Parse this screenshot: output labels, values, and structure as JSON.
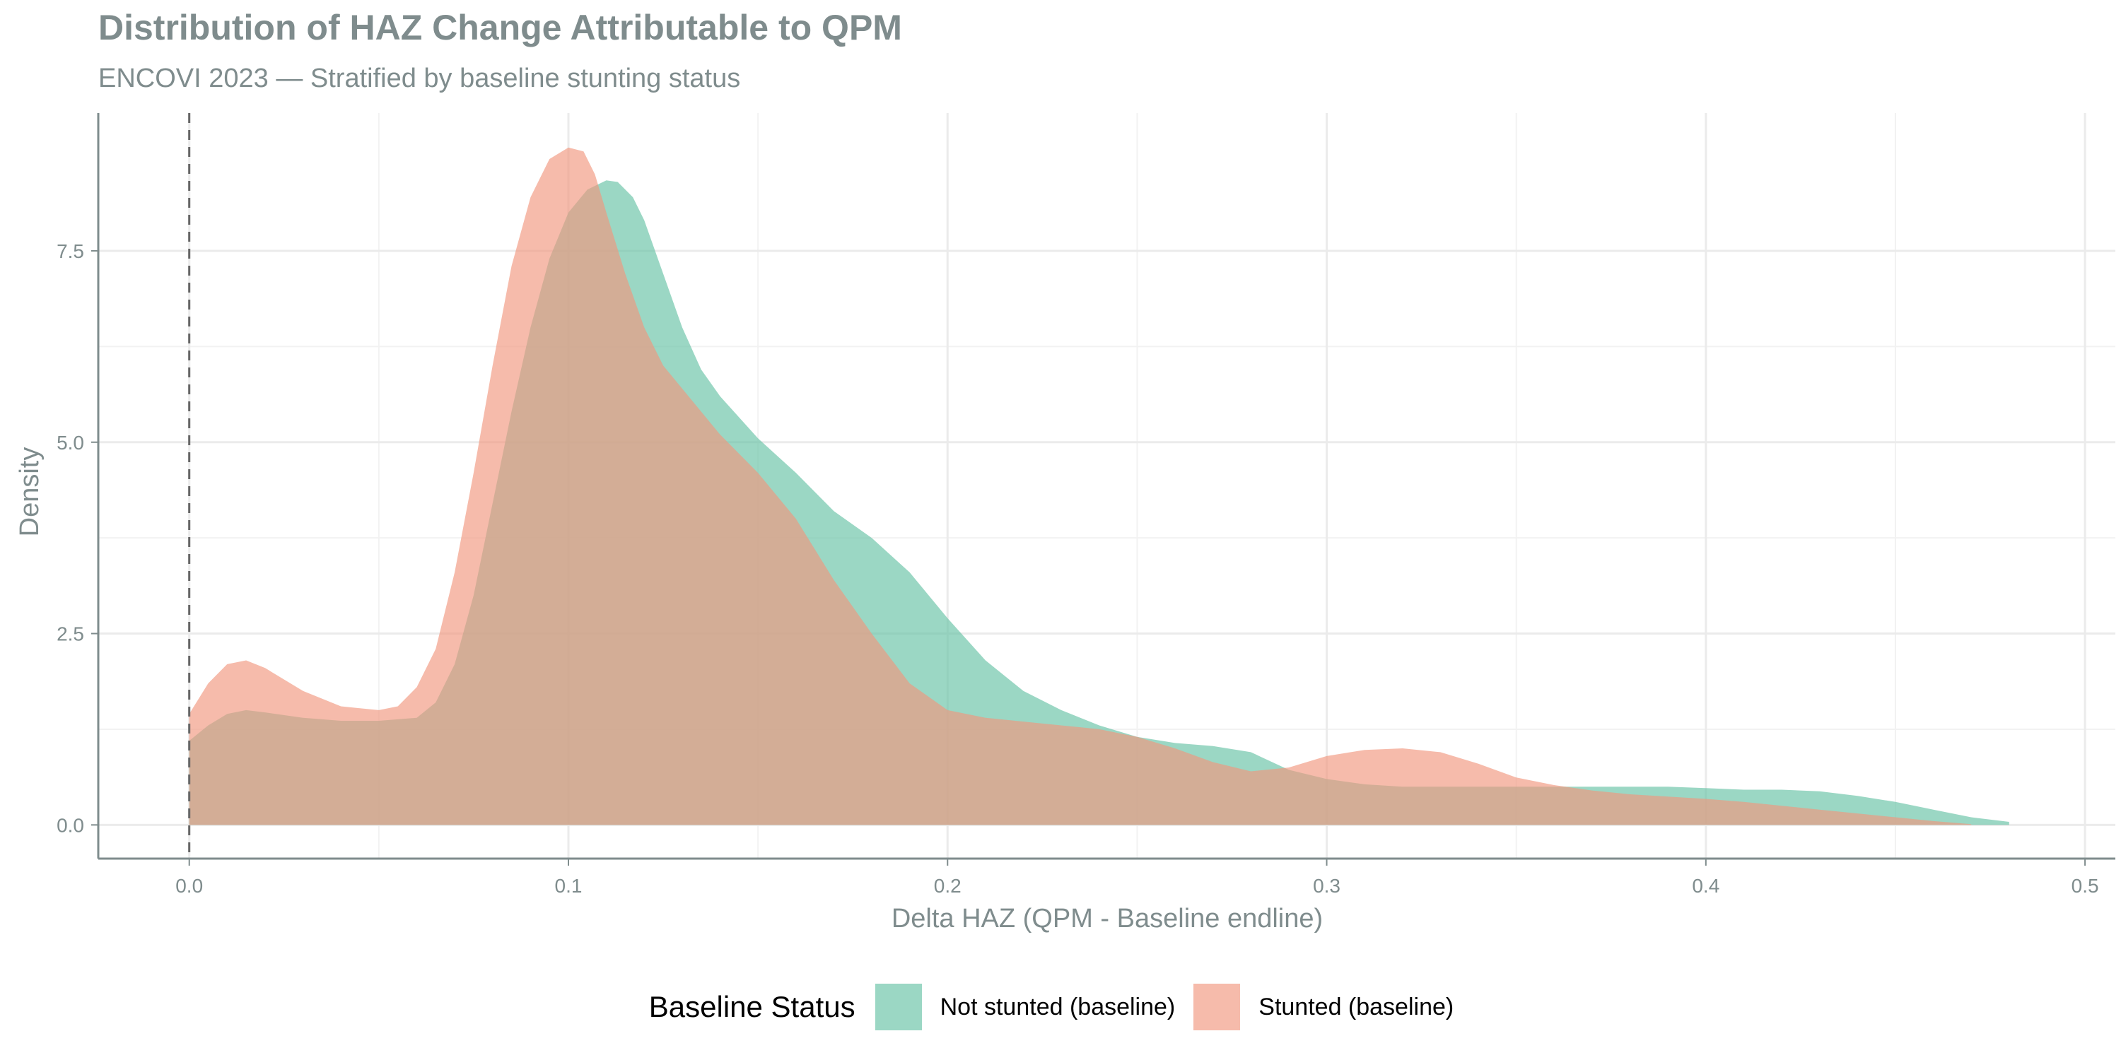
{
  "chart_data": {
    "type": "area",
    "title": "Distribution of HAZ Change Attributable to QPM",
    "subtitle": "ENCOVI 2023 — Stratified by baseline stunting status",
    "xlabel": "Delta HAZ (QPM - Baseline endline)",
    "ylabel": "Density",
    "xlim": [
      -0.024,
      0.508
    ],
    "ylim": [
      -0.44,
      9.3
    ],
    "x_ticks": [
      0.0,
      0.1,
      0.2,
      0.3,
      0.4,
      0.5
    ],
    "x_tick_labels": [
      "0.0",
      "0.1",
      "0.2",
      "0.3",
      "0.4",
      "0.5"
    ],
    "y_ticks": [
      0.0,
      2.5,
      5.0,
      7.5
    ],
    "y_tick_labels": [
      "0.0",
      "2.5",
      "5.0",
      "7.5"
    ],
    "grid": true,
    "reference_line": {
      "x": 0.0,
      "style": "dashed"
    },
    "legend": {
      "title": "Baseline Status",
      "position": "bottom"
    },
    "series": [
      {
        "name": "Not stunted (baseline)",
        "color": "#66c2a5",
        "x": [
          0.0,
          0.005,
          0.01,
          0.015,
          0.02,
          0.03,
          0.04,
          0.05,
          0.06,
          0.065,
          0.07,
          0.075,
          0.08,
          0.085,
          0.09,
          0.095,
          0.1,
          0.105,
          0.11,
          0.113,
          0.117,
          0.12,
          0.125,
          0.13,
          0.135,
          0.14,
          0.15,
          0.16,
          0.17,
          0.18,
          0.19,
          0.2,
          0.21,
          0.22,
          0.23,
          0.24,
          0.25,
          0.26,
          0.27,
          0.28,
          0.29,
          0.3,
          0.31,
          0.32,
          0.33,
          0.34,
          0.35,
          0.36,
          0.37,
          0.38,
          0.39,
          0.4,
          0.41,
          0.42,
          0.43,
          0.44,
          0.45,
          0.46,
          0.47,
          0.48
        ],
        "y": [
          1.1,
          1.3,
          1.45,
          1.5,
          1.47,
          1.4,
          1.36,
          1.36,
          1.4,
          1.6,
          2.1,
          3.0,
          4.2,
          5.4,
          6.5,
          7.4,
          8.0,
          8.3,
          8.42,
          8.4,
          8.2,
          7.9,
          7.2,
          6.5,
          5.95,
          5.6,
          5.05,
          4.6,
          4.1,
          3.75,
          3.3,
          2.7,
          2.15,
          1.75,
          1.5,
          1.3,
          1.15,
          1.07,
          1.03,
          0.95,
          0.72,
          0.6,
          0.53,
          0.5,
          0.5,
          0.5,
          0.5,
          0.5,
          0.5,
          0.5,
          0.5,
          0.48,
          0.46,
          0.46,
          0.44,
          0.38,
          0.3,
          0.2,
          0.1,
          0.04
        ]
      },
      {
        "name": "Stunted (baseline)",
        "color": "#f1967e",
        "x": [
          0.0,
          0.005,
          0.01,
          0.015,
          0.02,
          0.03,
          0.04,
          0.05,
          0.055,
          0.06,
          0.065,
          0.07,
          0.075,
          0.08,
          0.085,
          0.09,
          0.095,
          0.1,
          0.104,
          0.107,
          0.11,
          0.115,
          0.12,
          0.125,
          0.13,
          0.14,
          0.15,
          0.16,
          0.17,
          0.18,
          0.19,
          0.2,
          0.21,
          0.22,
          0.23,
          0.24,
          0.25,
          0.26,
          0.27,
          0.28,
          0.29,
          0.3,
          0.31,
          0.32,
          0.33,
          0.34,
          0.35,
          0.36,
          0.37,
          0.38,
          0.39,
          0.4,
          0.41,
          0.42,
          0.43,
          0.44,
          0.45,
          0.46,
          0.47
        ],
        "y": [
          1.45,
          1.85,
          2.1,
          2.15,
          2.05,
          1.75,
          1.55,
          1.5,
          1.55,
          1.8,
          2.3,
          3.3,
          4.6,
          6.0,
          7.3,
          8.2,
          8.7,
          8.85,
          8.8,
          8.5,
          8.0,
          7.2,
          6.5,
          6.0,
          5.7,
          5.1,
          4.6,
          4.0,
          3.2,
          2.5,
          1.85,
          1.5,
          1.4,
          1.35,
          1.3,
          1.25,
          1.15,
          1.0,
          0.82,
          0.7,
          0.75,
          0.9,
          0.98,
          1.0,
          0.95,
          0.8,
          0.62,
          0.52,
          0.45,
          0.4,
          0.37,
          0.34,
          0.3,
          0.25,
          0.2,
          0.15,
          0.1,
          0.05,
          0.01
        ]
      }
    ]
  }
}
